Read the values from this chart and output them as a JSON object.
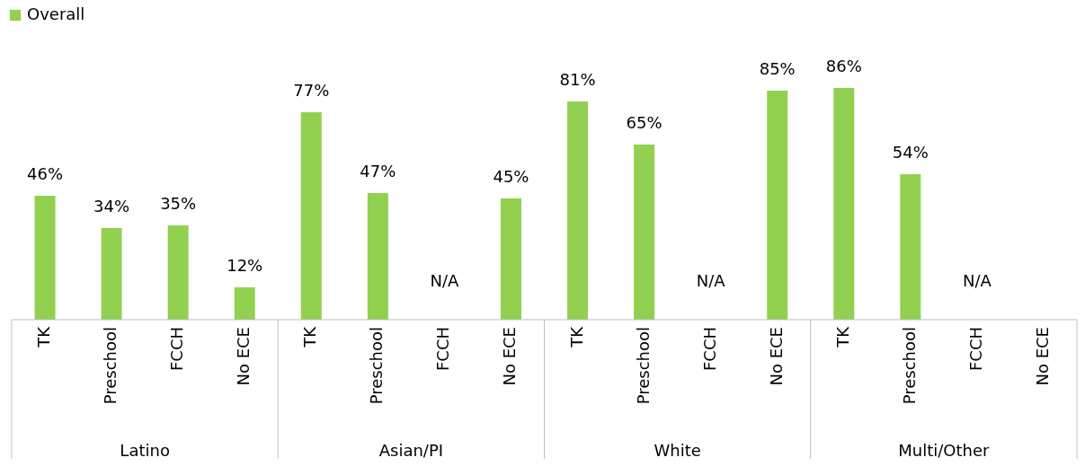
{
  "chart_data": {
    "type": "bar",
    "categories": [
      "TK",
      "Preschool",
      "FCCH",
      "No ECE",
      "TK",
      "Preschool",
      "FCCH",
      "No ECE",
      "TK",
      "Preschool",
      "FCCH",
      "No ECE",
      "TK",
      "Preschool",
      "FCCH",
      "No ECE"
    ],
    "series": [
      {
        "name": "Overall",
        "color": "#92d050",
        "values": [
          46,
          34,
          35,
          12,
          77,
          47,
          null,
          45,
          81,
          65,
          null,
          85,
          86,
          54,
          null,
          null
        ],
        "value_labels": [
          "46%",
          "34%",
          "35%",
          "12%",
          "77%",
          "47%",
          "N/A",
          "45%",
          "81%",
          "65%",
          "N/A",
          "85%",
          "86%",
          "54%",
          "N/A",
          null
        ]
      }
    ],
    "annotations": [
      "Latino",
      "Asian/PI",
      "White",
      "Multi/Other"
    ],
    "legend": "top"
  }
}
